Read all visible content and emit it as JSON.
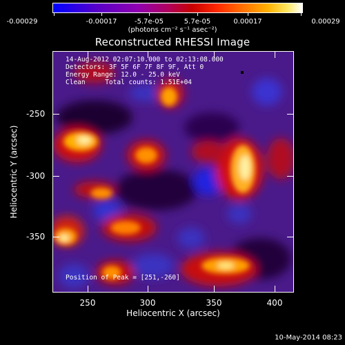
{
  "colorbar": {
    "tick_labels": [
      "-0.00029",
      "-0.00017",
      "-5.7e-05",
      "5.7e-05",
      "0.00017",
      "0.00029"
    ],
    "units_label": "(photons cm⁻² s⁻¹ asec⁻²)"
  },
  "title": "Reconstructed RHESSI Image",
  "info": {
    "line1": "14-Aug-2012 02:07:10.000 to 02:13:08.000",
    "line2": "Detectors: 3F 5F 6F 7F 8F 9F, Att 0",
    "line3": "Energy Range: 12.0 - 25.0 keV",
    "line4": "Clean     Total counts: 1.51E+04"
  },
  "peak_text": "Position of Peak = [251,-260]",
  "axes": {
    "xlabel": "Heliocentric X (arcsec)",
    "ylabel": "Heliocentric Y (arcsec)",
    "xticks": [
      "250",
      "300",
      "350",
      "400"
    ],
    "yticks": [
      "-250",
      "-300",
      "-350"
    ]
  },
  "timestamp": "10-May-2014 08:23",
  "colors": {
    "low": "#0000ff",
    "mid": "#9000b0",
    "high": "#ffffff"
  }
}
